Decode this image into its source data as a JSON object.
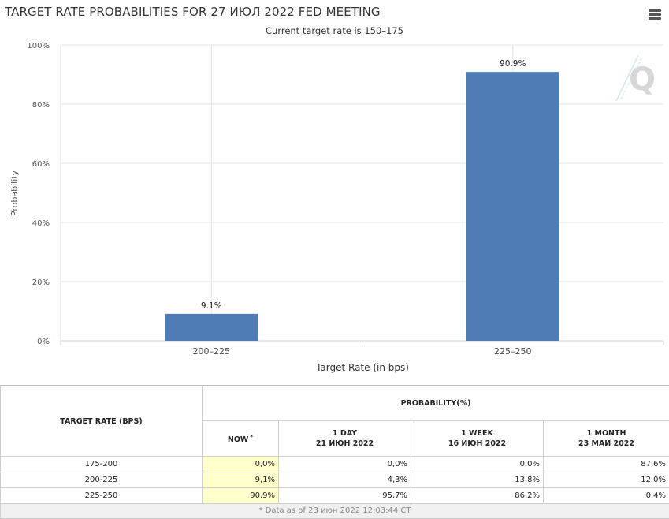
{
  "header": {
    "title": "TARGET RATE PROBABILITIES FOR 27 ИЮЛ 2022 FED MEETING",
    "subtitle": "Current target rate is 150–175"
  },
  "chart_data": {
    "type": "bar",
    "categories": [
      "200–225",
      "225–250"
    ],
    "values": [
      9.1,
      90.9
    ],
    "data_labels": [
      "9.1%",
      "90.9%"
    ],
    "title": "TARGET RATE PROBABILITIES FOR 27 ИЮЛ 2022 FED MEETING",
    "subtitle": "Current target rate is 150–175",
    "xlabel": "Target Rate (in bps)",
    "ylabel": "Probability",
    "ylim": [
      0,
      100
    ],
    "yticks": [
      "0%",
      "20%",
      "40%",
      "60%",
      "80%",
      "100%"
    ],
    "grid": true,
    "bar_color": "#4f7cb4"
  },
  "table": {
    "rate_header": "TARGET RATE (BPS)",
    "prob_header": "PROBABILITY(%)",
    "columns": [
      {
        "line1": "NOW",
        "line2": "",
        "mark": "*"
      },
      {
        "line1": "1 DAY",
        "line2": "21 ИЮН 2022",
        "mark": ""
      },
      {
        "line1": "1 WEEK",
        "line2": "16 ИЮН 2022",
        "mark": ""
      },
      {
        "line1": "1 MONTH",
        "line2": "23 МАЙ 2022",
        "mark": ""
      }
    ],
    "rows": [
      {
        "rate": "175-200",
        "values": [
          "0,0%",
          "0,0%",
          "0,0%",
          "87,6%"
        ]
      },
      {
        "rate": "200-225",
        "values": [
          "9,1%",
          "4,3%",
          "13,8%",
          "12,0%"
        ]
      },
      {
        "rate": "225-250",
        "values": [
          "90,9%",
          "95,7%",
          "86,2%",
          "0,4%"
        ]
      }
    ],
    "footnote": "* Data as of 23 июн 2022 12:03:44 CT"
  },
  "colors": {
    "now_column": "#ffffcc",
    "accent": "#4f7cb4"
  }
}
